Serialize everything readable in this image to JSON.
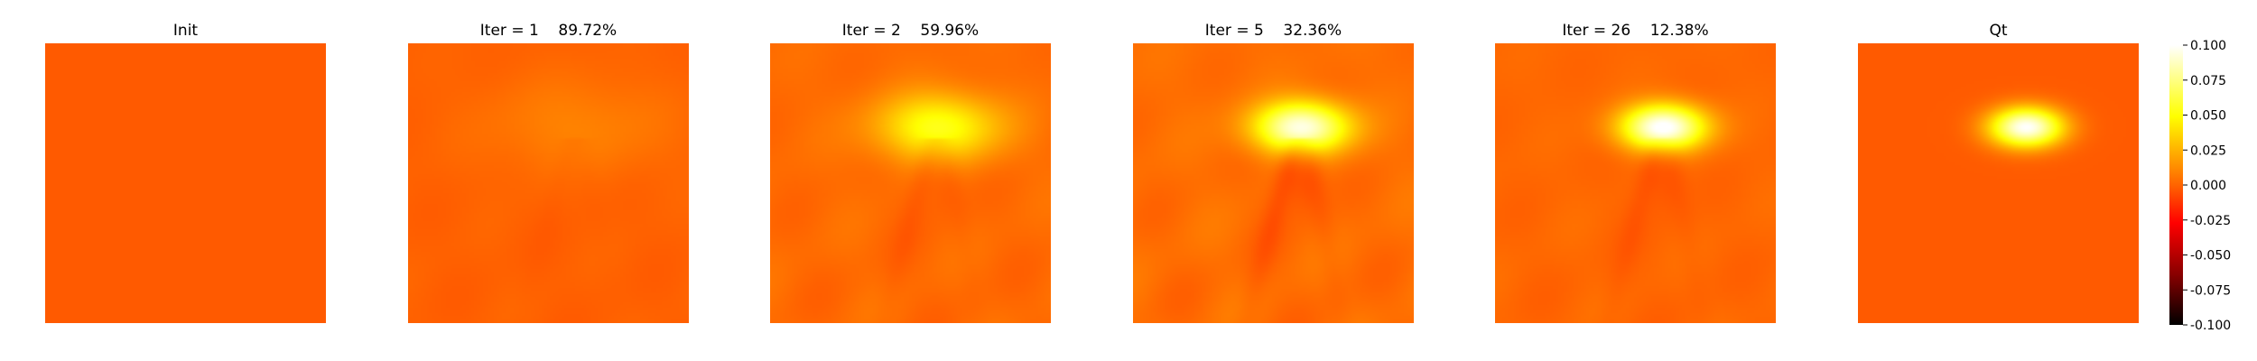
{
  "chart_data": {
    "type": "heatmap",
    "colormap": "hot",
    "colorbar": {
      "vmin": -0.1,
      "vmax": 0.1,
      "ticks": [
        "0.100",
        "0.075",
        "0.050",
        "0.025",
        "0.000",
        "-0.025",
        "-0.050",
        "-0.075",
        "-0.100"
      ],
      "tick_values": [
        0.1,
        0.075,
        0.05,
        0.025,
        0.0,
        -0.025,
        -0.05,
        -0.075,
        -0.1
      ]
    },
    "panels": [
      {
        "title": "Init",
        "base": 0.0,
        "peak": 0.0,
        "spread": 0.0,
        "streaks": 0.0,
        "ripples": 0.0
      },
      {
        "title": "Iter = 1    89.72%",
        "base": 0.002,
        "peak": 0.01,
        "spread": 2.6,
        "streaks": -0.002,
        "ripples": 0.002
      },
      {
        "title": "Iter = 2    59.96%",
        "base": 0.005,
        "peak": 0.05,
        "spread": 1.7,
        "streaks": -0.007,
        "ripples": 0.004
      },
      {
        "title": "Iter = 5    32.36%",
        "base": 0.006,
        "peak": 0.09,
        "spread": 1.3,
        "streaks": -0.013,
        "ripples": 0.005
      },
      {
        "title": "Iter = 26    12.38%",
        "base": 0.004,
        "peak": 0.1,
        "spread": 1.15,
        "streaks": -0.008,
        "ripples": 0.003
      },
      {
        "title": "Qt",
        "base": 0.0,
        "peak": 0.1,
        "spread": 1.0,
        "streaks": 0.0,
        "ripples": 0.0
      }
    ]
  }
}
